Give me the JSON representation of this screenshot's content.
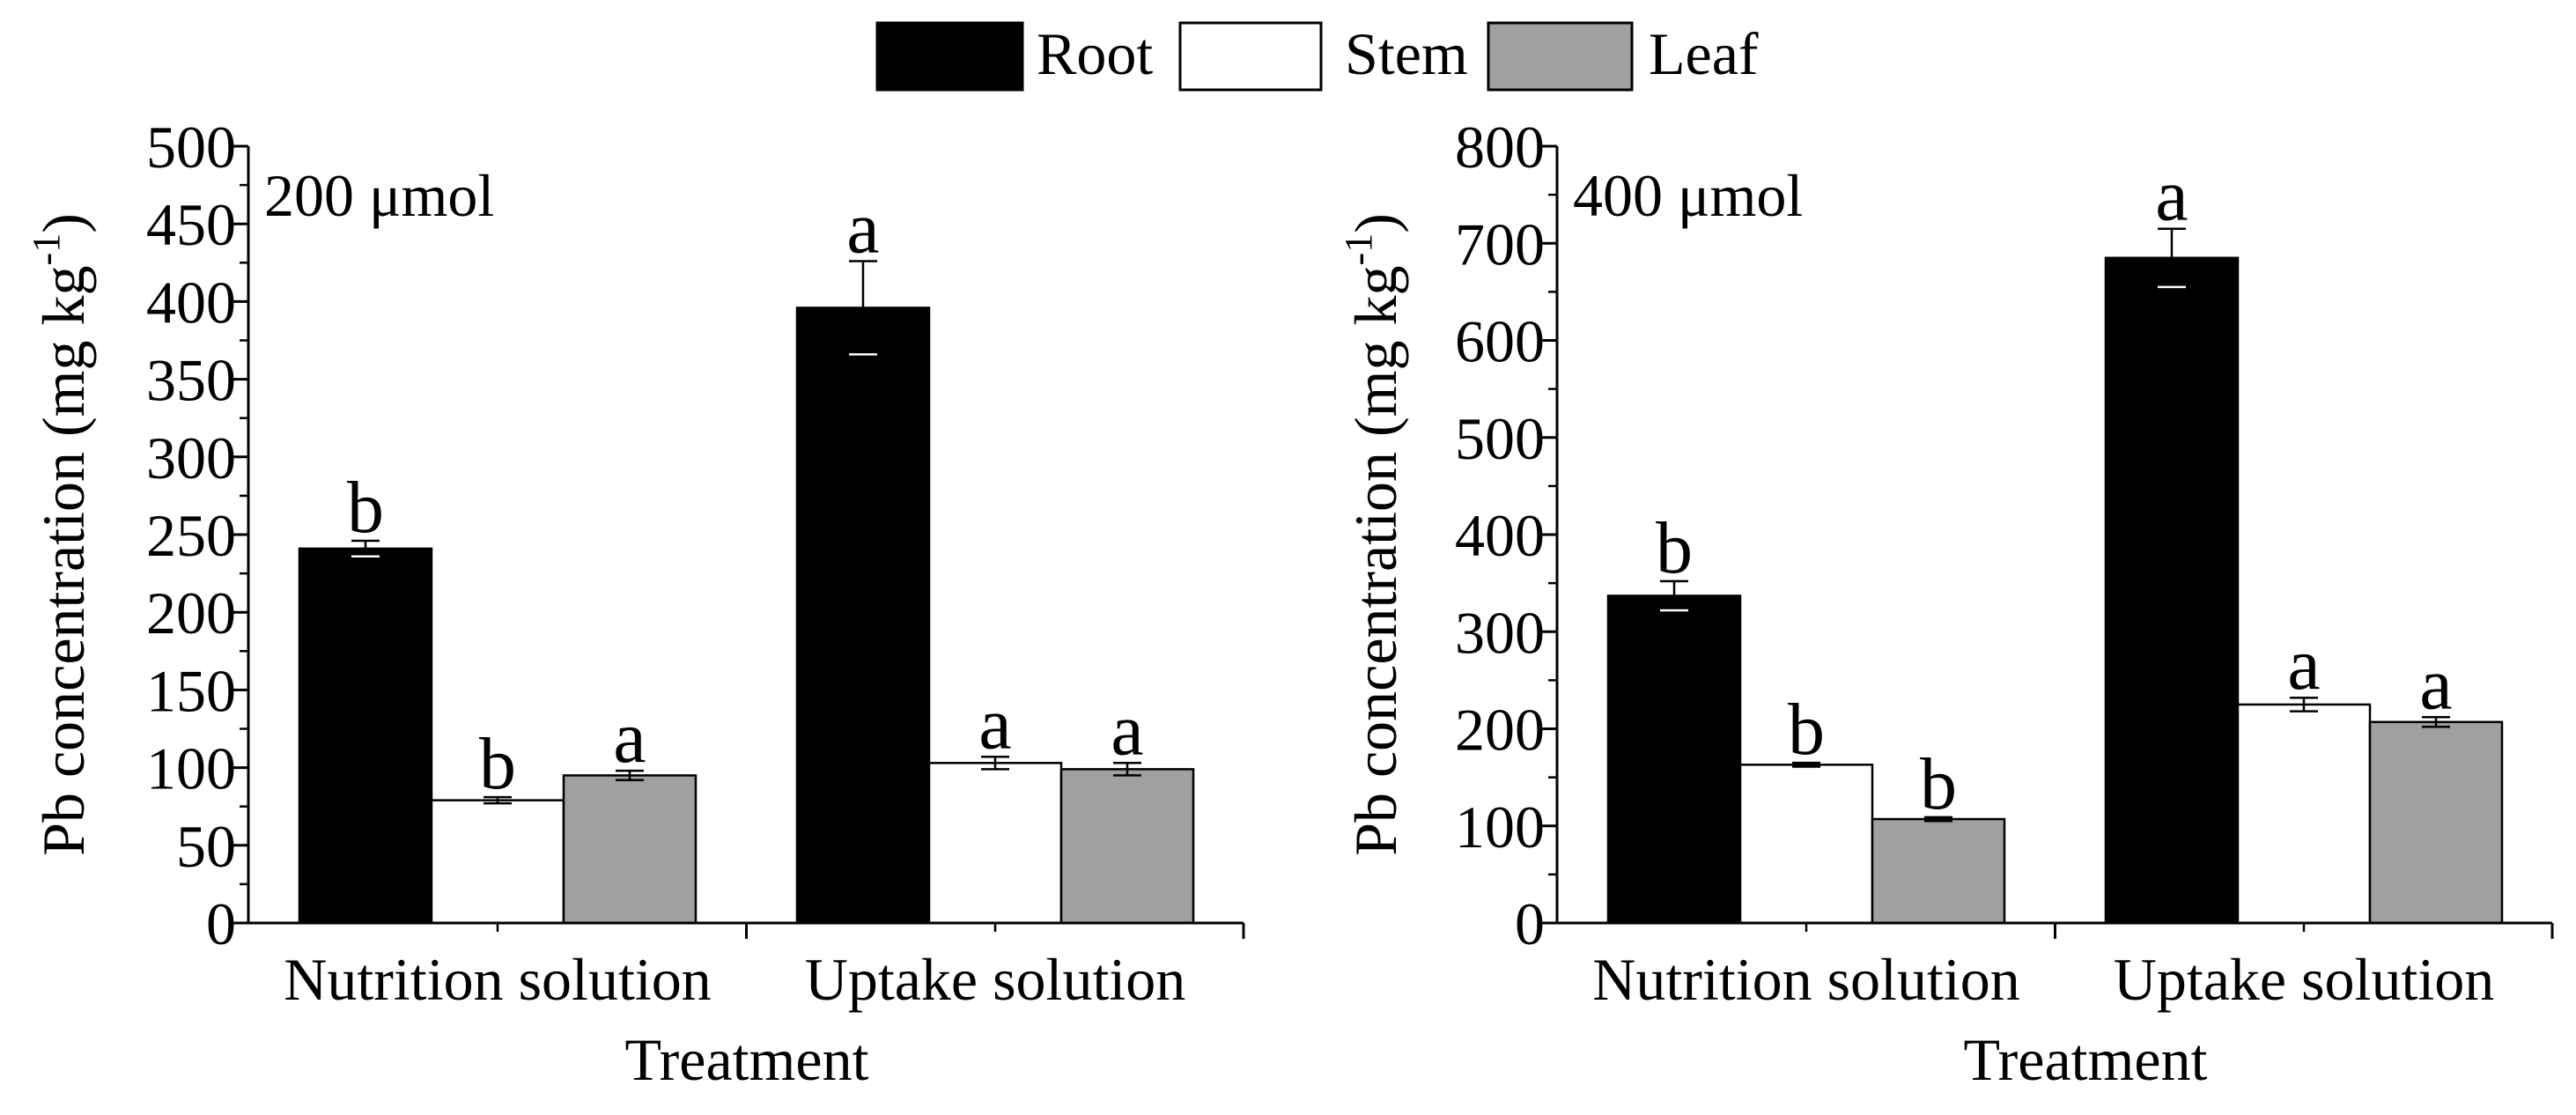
{
  "legend": {
    "items": [
      {
        "name": "Root",
        "color": "#000000"
      },
      {
        "name": "Stem",
        "color": "#ffffff"
      },
      {
        "name": "Leaf",
        "color": "#a0a0a0"
      }
    ]
  },
  "chart_data": [
    {
      "type": "bar",
      "panel_label": "200 μmol",
      "xlabel": "Treatment",
      "ylabel_main": "Pb concentration (mg kg",
      "ylabel_sup": "-1",
      "ylabel_close": ")",
      "ylim": [
        0,
        500
      ],
      "yticks": [
        0,
        50,
        100,
        150,
        200,
        250,
        300,
        350,
        400,
        450,
        500
      ],
      "ytick_labels": [
        "0",
        "50",
        "100",
        "150",
        "200",
        "250",
        "300",
        "350",
        "400",
        "450",
        "500"
      ],
      "categories": [
        "Nutrition solution",
        "Uptake solution"
      ],
      "series": [
        {
          "name": "Root",
          "values": [
            241,
            396
          ],
          "errors": [
            5,
            30
          ],
          "letters": [
            "b",
            "a"
          ]
        },
        {
          "name": "Stem",
          "values": [
            79,
            103
          ],
          "errors": [
            2,
            4
          ],
          "letters": [
            "b",
            "a"
          ]
        },
        {
          "name": "Leaf",
          "values": [
            95,
            99
          ],
          "errors": [
            3,
            4
          ],
          "letters": [
            "a",
            "a"
          ]
        }
      ]
    },
    {
      "type": "bar",
      "panel_label": "400 μmol",
      "xlabel": "Treatment",
      "ylabel_main": "Pb concentration (mg kg",
      "ylabel_sup": "-1",
      "ylabel_close": ")",
      "ylim": [
        0,
        800
      ],
      "yticks": [
        0,
        100,
        200,
        300,
        400,
        500,
        600,
        700,
        800
      ],
      "ytick_labels": [
        "0",
        "100",
        "200",
        "300",
        "400",
        "500",
        "600",
        "700",
        "800"
      ],
      "categories": [
        "Nutrition solution",
        "Uptake solution"
      ],
      "series": [
        {
          "name": "Root",
          "values": [
            337,
            685
          ],
          "errors": [
            15,
            30
          ],
          "letters": [
            "b",
            "a"
          ]
        },
        {
          "name": "Stem",
          "values": [
            163,
            225
          ],
          "errors": [
            2,
            7
          ],
          "letters": [
            "b",
            "a"
          ]
        },
        {
          "name": "Leaf",
          "values": [
            107,
            207
          ],
          "errors": [
            2,
            5
          ],
          "letters": [
            "b",
            "a"
          ]
        }
      ]
    }
  ]
}
